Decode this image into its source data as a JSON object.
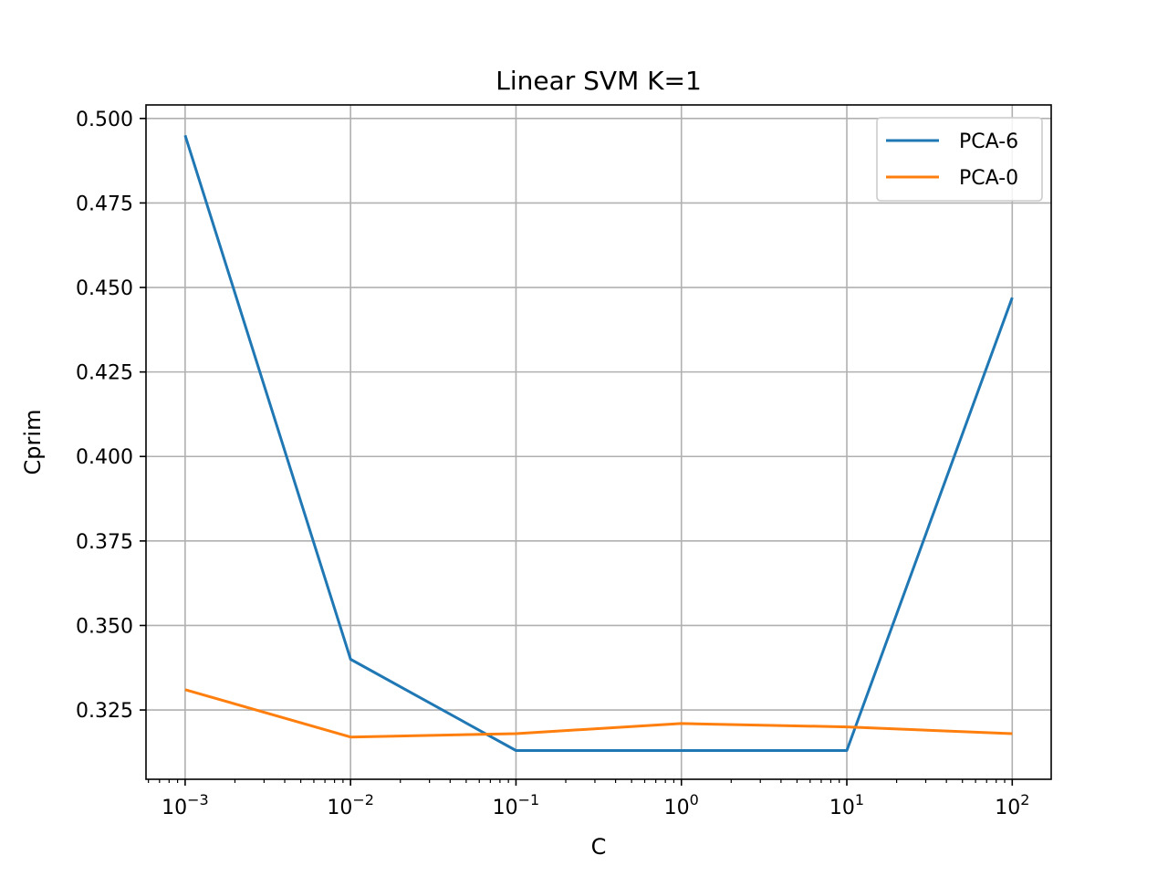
{
  "chart_data": {
    "type": "line",
    "title": "Linear SVM K=1",
    "xlabel": "C",
    "ylabel": "Cprim",
    "xscale": "log",
    "x": [
      0.001,
      0.01,
      0.1,
      1,
      10,
      100
    ],
    "x_tick_labels": [
      {
        "base": "10",
        "exp": "−3"
      },
      {
        "base": "10",
        "exp": "−2"
      },
      {
        "base": "10",
        "exp": "−1"
      },
      {
        "base": "10",
        "exp": "0"
      },
      {
        "base": "10",
        "exp": "1"
      },
      {
        "base": "10",
        "exp": "2"
      }
    ],
    "xlim": [
      0.00058,
      172
    ],
    "ylim": [
      0.3045,
      0.504
    ],
    "y_ticks": [
      "0.325",
      "0.350",
      "0.375",
      "0.400",
      "0.425",
      "0.450",
      "0.475",
      "0.500"
    ],
    "grid": true,
    "legend_position": "top-right",
    "series": [
      {
        "name": "PCA-6",
        "color": "#1f77b4",
        "values": [
          0.495,
          0.34,
          0.313,
          0.313,
          0.313,
          0.447
        ]
      },
      {
        "name": "PCA-0",
        "color": "#ff7f0e",
        "values": [
          0.331,
          0.317,
          0.318,
          0.321,
          0.32,
          0.318
        ]
      }
    ]
  }
}
